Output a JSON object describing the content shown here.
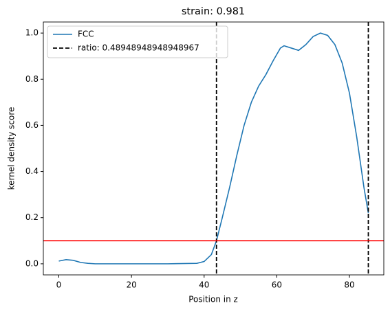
{
  "chart_data": {
    "type": "line",
    "title": "strain: 0.981",
    "xlabel": "Position in z",
    "ylabel": "kernel density score",
    "x": [
      0,
      2,
      4,
      6,
      8,
      10,
      20,
      30,
      38,
      40,
      42,
      43.4,
      45,
      47,
      49,
      51,
      53,
      55,
      57,
      59,
      61,
      62,
      64,
      66,
      68,
      70,
      72,
      74,
      76,
      78,
      80,
      82,
      84,
      85.2
    ],
    "series": [
      {
        "name": "FCC",
        "color": "#1f77b4",
        "values": [
          0.012,
          0.018,
          0.015,
          0.006,
          0.002,
          0.0,
          0.0,
          0.0,
          0.002,
          0.01,
          0.04,
          0.1,
          0.2,
          0.33,
          0.47,
          0.6,
          0.7,
          0.77,
          0.82,
          0.88,
          0.935,
          0.945,
          0.935,
          0.925,
          0.95,
          0.985,
          1.0,
          0.99,
          0.95,
          0.87,
          0.74,
          0.55,
          0.33,
          0.22
        ]
      }
    ],
    "vlines": {
      "name": "ratio: 0.48948948948948967",
      "color": "#000000",
      "x": [
        43.4,
        85.2
      ]
    },
    "hline": {
      "y": 0.1,
      "color": "#ff0000"
    },
    "xlim": [
      -4.26,
      89.46
    ],
    "ylim": [
      -0.048,
      1.048
    ],
    "xticks": [
      0,
      20,
      40,
      60,
      80
    ],
    "yticks": [
      {
        "value": 0,
        "label": "0.0"
      },
      {
        "value": 0.2,
        "label": "0.2"
      },
      {
        "value": 0.4,
        "label": "0.4"
      },
      {
        "value": 0.6,
        "label": "0.6"
      },
      {
        "value": 0.8,
        "label": "0.8"
      },
      {
        "value": 1,
        "label": "1.0"
      }
    ],
    "legend": "upper left"
  }
}
